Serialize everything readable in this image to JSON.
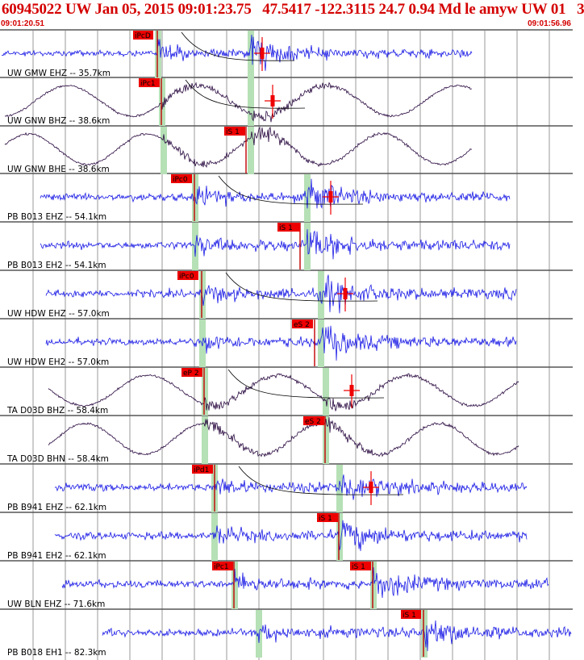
{
  "header": {
    "title": "60945022 UW Jan 05, 2015 09:01:23.75   47.5417 -122.3115 24.7 0.94 Md le amyw UW 01   3",
    "time_start": "09:01:20.51",
    "time_end": "09:01:56.96"
  },
  "colors": {
    "short_period": "#1a1ae6",
    "broadband": "#2a0a40",
    "pick_box": "#ee0000",
    "window": "#b6e0b6",
    "grid": "#555555"
  },
  "traces": [
    {
      "label": "UW GMW EHZ -- 35.7km",
      "kind": "short_period",
      "pick": "iPcD",
      "second_pick": "",
      "amplitude_marker": true
    },
    {
      "label": "UW GNW BHZ -- 38.6km",
      "kind": "broadband",
      "pick": "iPc1",
      "second_pick": "",
      "amplitude_marker": true
    },
    {
      "label": "UW GNW BHE -- 38.6km",
      "kind": "broadband",
      "pick": "iS 1",
      "second_pick": "",
      "amplitude_marker": false
    },
    {
      "label": "PB B013 EHZ -- 54.1km",
      "kind": "short_period",
      "pick": "iPc0",
      "second_pick": "",
      "amplitude_marker": true
    },
    {
      "label": "PB B013 EH2 -- 54.1km",
      "kind": "short_period",
      "pick": "iS 1",
      "second_pick": "",
      "amplitude_marker": false
    },
    {
      "label": "UW HDW EHZ -- 57.0km",
      "kind": "short_period",
      "pick": "iPc0",
      "second_pick": "",
      "amplitude_marker": true
    },
    {
      "label": "UW HDW EH2 -- 57.0km",
      "kind": "short_period",
      "pick": "eS 2",
      "second_pick": "",
      "amplitude_marker": false
    },
    {
      "label": "TA D03D BHZ -- 58.4km",
      "kind": "broadband",
      "pick": "eP 2",
      "second_pick": "",
      "amplitude_marker": true
    },
    {
      "label": "TA D03D BHN -- 58.4km",
      "kind": "broadband",
      "pick": "eS 2",
      "second_pick": "",
      "amplitude_marker": false
    },
    {
      "label": "PB B941 EHZ -- 62.1km",
      "kind": "short_period",
      "pick": "iPd1",
      "second_pick": "",
      "amplitude_marker": true
    },
    {
      "label": "PB B941 EH2 -- 62.1km",
      "kind": "short_period",
      "pick": "iS 1",
      "second_pick": "",
      "amplitude_marker": false
    },
    {
      "label": "UW BLN EHZ -- 71.6km",
      "kind": "short_period",
      "pick": "iPc1",
      "second_pick": "iS 1",
      "amplitude_marker": false
    },
    {
      "label": "PB B018 EH1 -- 82.3km",
      "kind": "short_period",
      "pick": "iS 1",
      "second_pick": "",
      "amplitude_marker": false
    }
  ]
}
